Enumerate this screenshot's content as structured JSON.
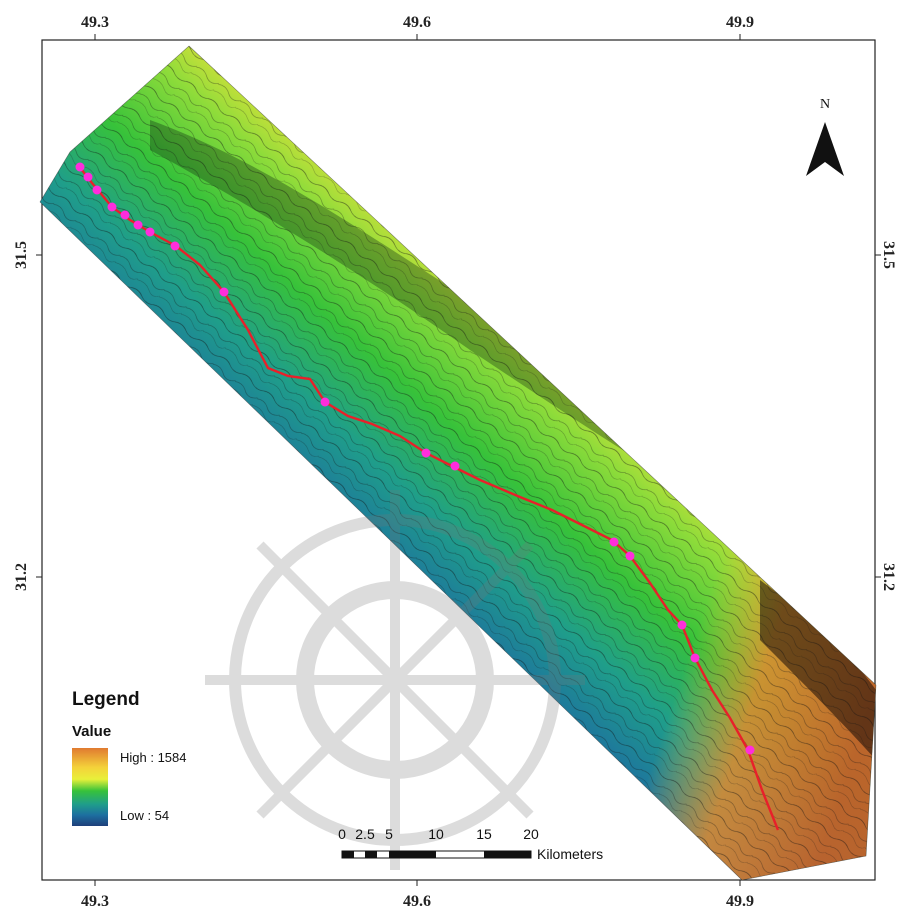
{
  "axes": {
    "top_labels": [
      "49.3",
      "49.6",
      "49.9"
    ],
    "bottom_labels": [
      "49.3",
      "49.6",
      "49.9"
    ],
    "left_labels": [
      "31.5",
      "31.2"
    ],
    "right_labels": [
      "31.5",
      "31.2"
    ]
  },
  "north_arrow": {
    "label": "N",
    "icon": "north-arrow-icon"
  },
  "legend": {
    "title": "Legend",
    "subtitle": "Value",
    "high_label": "High : 1584",
    "low_label": "Low : 54",
    "colors": [
      "#e07a30",
      "#f4d23a",
      "#e8f03a",
      "#37c23a",
      "#1f9e8a",
      "#1d6fa0",
      "#1e3f7a"
    ]
  },
  "scale_bar": {
    "ticks": [
      "0",
      "2.5",
      "5",
      "10",
      "15",
      "20"
    ],
    "unit": "Kilometers"
  },
  "route_color": "#e8202a",
  "station_color": "#ff2ddc"
}
